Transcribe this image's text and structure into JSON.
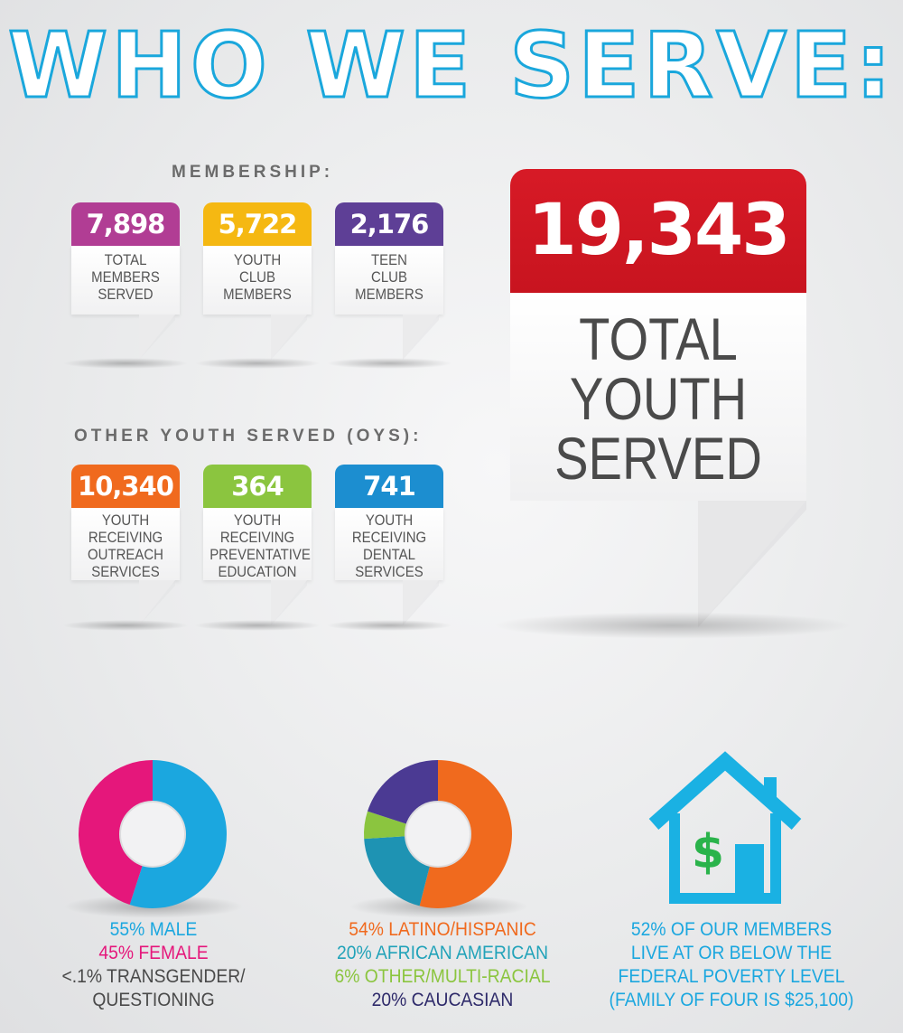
{
  "title": "WHO WE SERVE:",
  "membership": {
    "label": "MEMBERSHIP:",
    "cards": [
      {
        "value": "7,898",
        "lines": [
          "TOTAL",
          "MEMBERS",
          "SERVED"
        ],
        "color": "#b13d94"
      },
      {
        "value": "5,722",
        "lines": [
          "YOUTH",
          "CLUB",
          "MEMBERS"
        ],
        "color": "#f5b812"
      },
      {
        "value": "2,176",
        "lines": [
          "TEEN",
          "CLUB",
          "MEMBERS"
        ],
        "color": "#5e3f96"
      }
    ]
  },
  "oys": {
    "label": "OTHER YOUTH SERVED (OYS):",
    "cards": [
      {
        "value": "10,340",
        "lines": [
          "YOUTH",
          "RECEIVING",
          "OUTREACH",
          "SERVICES"
        ],
        "color": "#f06a1e"
      },
      {
        "value": "364",
        "lines": [
          "YOUTH",
          "RECEIVING",
          "PREVENTATIVE",
          "EDUCATION"
        ],
        "color": "#8bc53f"
      },
      {
        "value": "741",
        "lines": [
          "YOUTH",
          "RECEIVING",
          "DENTAL",
          "SERVICES"
        ],
        "color": "#1c8ed0"
      }
    ]
  },
  "total": {
    "value": "19,343",
    "lines": [
      "TOTAL",
      "YOUTH",
      "SERVED"
    ],
    "color": "#d71a26"
  },
  "gender": {
    "lines": [
      {
        "text": "55% MALE",
        "color": "#1ba7df"
      },
      {
        "text": "45% FEMALE",
        "color": "#e5177b"
      },
      {
        "text": "<.1% TRANSGENDER/",
        "color": "#4a4a4a"
      },
      {
        "text": "QUESTIONING",
        "color": "#4a4a4a"
      }
    ],
    "slices": [
      {
        "label": "MALE",
        "percent": 55,
        "color": "#1ba7df"
      },
      {
        "label": "FEMALE",
        "percent": 45,
        "color": "#e5177b"
      }
    ]
  },
  "ethnicity": {
    "lines": [
      {
        "text": "54% LATINO/HISPANIC",
        "color": "#f06a1e"
      },
      {
        "text": "20% AFRICAN AMERICAN",
        "color": "#22a3b9"
      },
      {
        "text": "6% OTHER/MULTI-RACIAL",
        "color": "#8bc53f"
      },
      {
        "text": "20% CAUCASIAN",
        "color": "#2e2a6a"
      }
    ],
    "slices": [
      {
        "label": "LATINO/HISPANIC",
        "percent": 54,
        "color": "#f06a1e"
      },
      {
        "label": "AFRICAN AMERICAN",
        "percent": 20,
        "color": "#1e93b3"
      },
      {
        "label": "OTHER/MULTI-RACIAL",
        "percent": 6,
        "color": "#8bc53f"
      },
      {
        "label": "CAUCASIAN",
        "percent": 20,
        "color": "#4b3a93"
      }
    ]
  },
  "poverty": {
    "icon": "house-dollar-icon",
    "icon_color": "#1ab1e3",
    "dollar_color": "#2ab34b",
    "dollar_symbol": "$",
    "lines": [
      "52% OF OUR MEMBERS",
      "LIVE AT OR BELOW THE",
      "FEDERAL POVERTY LEVEL",
      "(FAMILY OF FOUR IS $25,100)"
    ],
    "text_color": "#1ba7df"
  }
}
